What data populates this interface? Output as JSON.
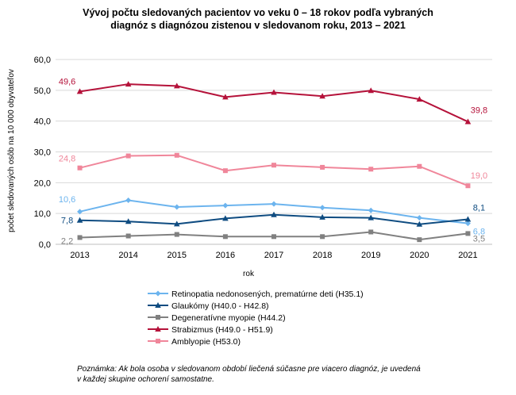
{
  "chart_data": {
    "type": "line",
    "title_lines": [
      "Vývoj počtu sledovaných pacientov vo veku 0 – 18 rokov podľa vybraných",
      "diagnóz s diagnózou zistenou v sledovanom roku, 2013 – 2021"
    ],
    "xlabel": "rok",
    "ylabel": "počet sledovaných osôb na 10 000 obyvateľov",
    "ylim": [
      0,
      60
    ],
    "yticks": [
      "0,0",
      "10,0",
      "20,0",
      "30,0",
      "40,0",
      "50,0",
      "60,0"
    ],
    "x": [
      "2013",
      "2014",
      "2015",
      "2016",
      "2017",
      "2018",
      "2019",
      "2020",
      "2021"
    ],
    "grid": true,
    "legend_position": "bottom",
    "series": [
      {
        "name": "Retinopatia nedonosených, prematúrne deti (H35.1)",
        "color": "#6cb4ee",
        "marker": "diamond",
        "values": [
          10.6,
          14.3,
          12.1,
          12.6,
          13.1,
          11.9,
          11.0,
          8.6,
          6.8
        ],
        "labels": {
          "first": "10,6",
          "last": "6,8"
        }
      },
      {
        "name": "Glaukómy (H40.0 - H42.8)",
        "color": "#0f4c81",
        "marker": "triangle",
        "values": [
          7.8,
          7.4,
          6.6,
          8.4,
          9.6,
          8.8,
          8.6,
          6.5,
          8.1
        ],
        "labels": {
          "first": "7,8",
          "last": "8,1"
        }
      },
      {
        "name": "Degeneratívne myopie (H44.2)",
        "color": "#808080",
        "marker": "square",
        "values": [
          2.2,
          2.7,
          3.2,
          2.5,
          2.5,
          2.5,
          4.0,
          1.5,
          3.5
        ],
        "labels": {
          "first": "2,2",
          "last": "3,5"
        }
      },
      {
        "name": "Strabizmus (H49.0 - H51.9)",
        "color": "#b5123a",
        "marker": "triangle",
        "values": [
          49.6,
          52.0,
          51.4,
          47.8,
          49.3,
          48.1,
          49.9,
          47.1,
          39.8
        ],
        "labels": {
          "first": "49,6",
          "last": "39,8"
        }
      },
      {
        "name": "Amblyopie (H53.0)",
        "color": "#f0869a",
        "marker": "square",
        "values": [
          24.8,
          28.7,
          28.9,
          23.9,
          25.7,
          25.0,
          24.4,
          25.3,
          19.0
        ],
        "labels": {
          "first": "24,8",
          "last": "19,0"
        }
      }
    ]
  },
  "note_lines": [
    "Poznámka: Ak bola osoba v sledovanom období liečená súčasne pre viacero diagnóz, je uvedená",
    "v každej skupine ochorení samostatne."
  ]
}
